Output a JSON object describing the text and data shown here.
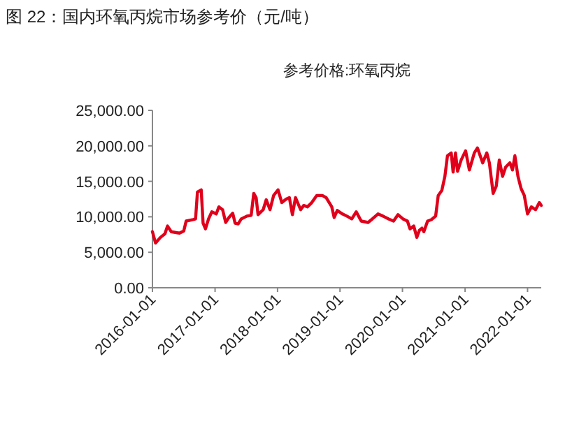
{
  "chart_data": {
    "type": "line",
    "title": "图 22：国内环氧丙烷市场参考价（元/吨）",
    "subtitle": "参考价格:环氧丙烷",
    "grid": false,
    "marker": "none",
    "line_style": "solid",
    "xlim": [
      "2016-01-01",
      "2022-03-22"
    ],
    "xticks": [
      "2016-01-01",
      "2017-01-01",
      "2018-01-01",
      "2019-01-01",
      "2020-01-01",
      "2021-01-01",
      "2022-01-01"
    ],
    "ylim": [
      0,
      25000
    ],
    "yticks": [
      {
        "value": 0,
        "label": "0.00"
      },
      {
        "value": 5000,
        "label": "5,000.00"
      },
      {
        "value": 10000,
        "label": "10,000.00"
      },
      {
        "value": 15000,
        "label": "15,000.00"
      },
      {
        "value": 20000,
        "label": "20,000.00"
      },
      {
        "value": 25000,
        "label": "25,000.00"
      }
    ],
    "series": [
      {
        "color": "#e0001b",
        "x": [
          "2016-01-01",
          "2016-01-19",
          "2016-02-17",
          "2016-03-14",
          "2016-03-29",
          "2016-04-20",
          "2016-06-07",
          "2016-07-02",
          "2016-07-16",
          "2016-08-26",
          "2016-09-09",
          "2016-09-20",
          "2016-10-12",
          "2016-10-23",
          "2016-11-06",
          "2016-11-24",
          "2016-12-13",
          "2017-01-08",
          "2017-01-23",
          "2017-02-14",
          "2017-03-04",
          "2017-03-23",
          "2017-04-14",
          "2017-04-28",
          "2017-05-16",
          "2017-06-03",
          "2017-07-06",
          "2017-07-31",
          "2017-08-15",
          "2017-08-29",
          "2017-09-09",
          "2017-10-09",
          "2017-10-27",
          "2017-11-18",
          "2017-12-09",
          "2018-01-04",
          "2018-01-26",
          "2018-02-21",
          "2018-03-11",
          "2018-03-29",
          "2018-04-16",
          "2018-05-16",
          "2018-06-03",
          "2018-06-25",
          "2018-07-20",
          "2018-08-18",
          "2018-09-20",
          "2018-10-12",
          "2018-11-14",
          "2018-11-28",
          "2018-12-16",
          "2019-01-15",
          "2019-02-10",
          "2019-03-11",
          "2019-04-06",
          "2019-05-05",
          "2019-06-14",
          "2019-07-09",
          "2019-08-11",
          "2019-09-09",
          "2019-10-12",
          "2019-11-10",
          "2019-12-06",
          "2020-01-04",
          "2020-01-30",
          "2020-02-14",
          "2020-03-07",
          "2020-03-25",
          "2020-04-09",
          "2020-04-24",
          "2020-05-05",
          "2020-05-27",
          "2020-06-18",
          "2020-07-13",
          "2020-07-28",
          "2020-08-18",
          "2020-09-05",
          "2020-09-20",
          "2020-10-12",
          "2020-10-23",
          "2020-11-06",
          "2020-11-18",
          "2020-12-09",
          "2021-01-04",
          "2021-01-26",
          "2021-02-24",
          "2021-03-14",
          "2021-04-14",
          "2021-05-08",
          "2021-05-23",
          "2021-06-14",
          "2021-07-02",
          "2021-07-20",
          "2021-08-08",
          "2021-08-26",
          "2021-09-20",
          "2021-10-05",
          "2021-10-19",
          "2021-11-06",
          "2021-11-24",
          "2021-12-13",
          "2022-01-01",
          "2022-01-23",
          "2022-02-17",
          "2022-03-11",
          "2022-03-22"
        ],
        "values": [
          7900,
          6300,
          7100,
          7600,
          8700,
          7900,
          7700,
          8000,
          9400,
          9600,
          9700,
          13500,
          13800,
          9100,
          8300,
          9700,
          10700,
          10400,
          11400,
          11000,
          9200,
          9900,
          10500,
          9100,
          9000,
          9700,
          10100,
          10200,
          13300,
          12700,
          10300,
          11000,
          12400,
          11000,
          13000,
          13800,
          12000,
          12500,
          12700,
          10300,
          12700,
          11000,
          11600,
          11400,
          12000,
          13000,
          13000,
          12700,
          11400,
          9900,
          10900,
          10400,
          10100,
          9700,
          10700,
          9400,
          9200,
          9700,
          10400,
          10100,
          9700,
          9400,
          10300,
          9700,
          9400,
          8300,
          8700,
          7100,
          8100,
          8400,
          7900,
          9400,
          9600,
          10100,
          13000,
          13700,
          15700,
          18600,
          19000,
          16300,
          19000,
          16400,
          18000,
          19300,
          16600,
          19000,
          19700,
          17600,
          19000,
          17600,
          13300,
          14300,
          18000,
          15700,
          17000,
          17600,
          16600,
          18600,
          15700,
          14000,
          13000,
          10400,
          11400,
          11000,
          12000,
          11600
        ]
      }
    ]
  }
}
